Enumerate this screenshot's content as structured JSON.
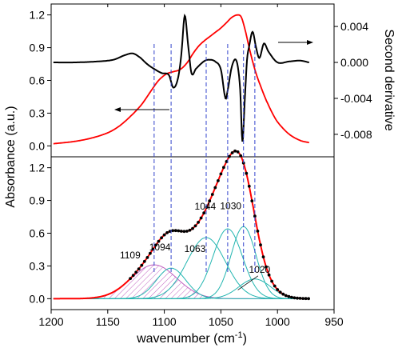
{
  "chart_data": [
    {
      "type": "line",
      "panel": "top",
      "ylabel_left": "Absorbance (a.u.)",
      "ylabel_right": "Second derivative",
      "xlim": [
        1200,
        950
      ],
      "ylim_left": [
        -0.1,
        1.3
      ],
      "ylim_right": [
        -0.0105,
        0.0065
      ],
      "left_yticks": [
        "0.0",
        "0.3",
        "0.6",
        "0.9",
        "1.2"
      ],
      "right_yticks": [
        "0.004",
        "0.000",
        "-0.004",
        "-0.008"
      ],
      "grid": false,
      "series": [
        {
          "id": "absorbance",
          "color": "#ff0000",
          "axis": "left",
          "x": [
            1198,
            1180,
            1165,
            1150,
            1140,
            1130,
            1120,
            1112,
            1105,
            1098,
            1092,
            1086,
            1080,
            1075,
            1070,
            1065,
            1060,
            1055,
            1050,
            1045,
            1040,
            1035,
            1032,
            1029,
            1025,
            1020,
            1015,
            1010,
            1005,
            1000,
            990,
            980,
            972
          ],
          "y": [
            0.02,
            0.04,
            0.07,
            0.12,
            0.18,
            0.27,
            0.38,
            0.5,
            0.6,
            0.66,
            0.68,
            0.7,
            0.76,
            0.84,
            0.91,
            0.96,
            1.0,
            1.04,
            1.08,
            1.13,
            1.18,
            1.2,
            1.18,
            1.08,
            0.9,
            0.7,
            0.55,
            0.42,
            0.31,
            0.22,
            0.11,
            0.05,
            0.03
          ]
        },
        {
          "id": "second-derivative",
          "color": "#000000",
          "axis": "right",
          "x": [
            1198,
            1180,
            1160,
            1145,
            1135,
            1128,
            1122,
            1115,
            1108,
            1102,
            1096,
            1092,
            1088,
            1085,
            1082,
            1079,
            1076,
            1072,
            1068,
            1064,
            1060,
            1055,
            1050,
            1046,
            1044,
            1040,
            1036,
            1033,
            1031,
            1029,
            1027,
            1025,
            1022,
            1019,
            1016,
            1012,
            1008,
            1000,
            990,
            980,
            972
          ],
          "y": [
            0.0,
            0.0,
            0.0001,
            0.0003,
            0.0008,
            0.001,
            0.0006,
            -0.0002,
            -0.0008,
            -0.0012,
            -0.0014,
            -0.0028,
            -0.0018,
            0.0008,
            0.0052,
            0.002,
            -0.0012,
            -0.0007,
            -0.0002,
            0.0002,
            0.0003,
            0.0001,
            -0.0008,
            -0.004,
            -0.0031,
            -0.0003,
            0.0001,
            -0.003,
            -0.0088,
            -0.0045,
            0.0002,
            0.0018,
            0.0034,
            0.0017,
            0.0005,
            0.0021,
            0.0012,
            0.0,
            0.0001,
            0.0002,
            0.0
          ]
        }
      ],
      "peak_marker_x": [
        1109,
        1094,
        1063,
        1044,
        1030,
        1020
      ]
    },
    {
      "type": "line",
      "panel": "bottom",
      "xlabel": "wavenumber (cm-1)",
      "xlabel_parts": [
        "wavenumber (cm",
        "-1",
        ")"
      ],
      "xlim": [
        1200,
        950
      ],
      "ylim": [
        -0.1,
        1.3
      ],
      "xticks": [
        "1200",
        "1150",
        "1100",
        "1050",
        "1000",
        "950"
      ],
      "yticks": [
        "0.0",
        "0.3",
        "0.6",
        "0.9",
        "1.2"
      ],
      "grid": false,
      "fit_curve_color": "#ff0000",
      "data_point_color": "#000000",
      "peak_color": "#22b5b0",
      "hatched_peak_color": "#c060c0",
      "peaks": [
        {
          "label": "1109",
          "center": 1109,
          "height": 0.31,
          "width": 20
        },
        {
          "label": "1094",
          "center": 1094,
          "height": 0.28,
          "width": 13
        },
        {
          "label": "1063",
          "center": 1063,
          "height": 0.56,
          "width": 17
        },
        {
          "label": "1044",
          "center": 1044,
          "height": 0.64,
          "width": 13
        },
        {
          "label": "1030",
          "center": 1030,
          "height": 0.66,
          "width": 11
        },
        {
          "label": "1020",
          "center": 1020,
          "height": 0.18,
          "width": 14
        }
      ]
    }
  ]
}
